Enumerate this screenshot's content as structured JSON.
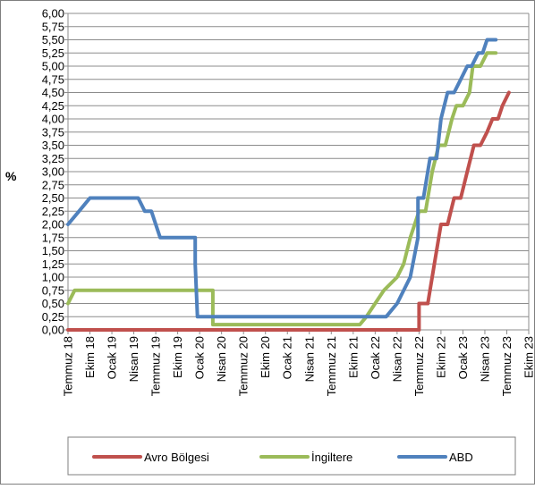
{
  "chart_data": {
    "type": "line",
    "title": "",
    "xlabel": "",
    "ylabel": "%",
    "ylim": [
      0,
      6
    ],
    "yticks": [
      "0,00",
      "0,25",
      "0,50",
      "0,75",
      "1,00",
      "1,25",
      "1,50",
      "1,75",
      "2,00",
      "2,25",
      "2,50",
      "2,75",
      "3,00",
      "3,25",
      "3,50",
      "3,75",
      "4,00",
      "4,25",
      "4,50",
      "4,75",
      "5,00",
      "5,25",
      "5,50",
      "5,75",
      "6,00"
    ],
    "xticks": [
      "Temmuz 18",
      "Ekim 18",
      "Ocak 19",
      "Nisan 19",
      "Temmuz 19",
      "Ekim 19",
      "Ocak 20",
      "Nisan 20",
      "Temmuz 20",
      "Ekim 20",
      "Ocak 21",
      "Nisan 21",
      "Temmuz 21",
      "Ekim 21",
      "Ocak 22",
      "Nisan 22",
      "Temmuz 22",
      "Ekim 22",
      "Ocak 23",
      "Nisan 23",
      "Temmuz 23",
      "Ekim 23"
    ],
    "grid": true,
    "legend_position": "bottom",
    "series": [
      {
        "name": "Avro Bölgesi",
        "color": "#C0504D",
        "points": [
          [
            0,
            0
          ],
          [
            16,
            0
          ],
          [
            16,
            0.5
          ],
          [
            16.4,
            0.5
          ],
          [
            16.7,
            1.25
          ],
          [
            17,
            2.0
          ],
          [
            17.3,
            2.0
          ],
          [
            17.6,
            2.5
          ],
          [
            17.9,
            2.5
          ],
          [
            18.2,
            3.0
          ],
          [
            18.5,
            3.5
          ],
          [
            18.8,
            3.5
          ],
          [
            19.1,
            3.75
          ],
          [
            19.35,
            4.0
          ],
          [
            19.6,
            4.0
          ],
          [
            19.8,
            4.25
          ],
          [
            20.1,
            4.5
          ]
        ]
      },
      {
        "name": "İngiltere",
        "color": "#9BBB59",
        "points": [
          [
            0,
            0.5
          ],
          [
            0.3,
            0.75
          ],
          [
            6.6,
            0.75
          ],
          [
            6.6,
            0.1
          ],
          [
            13.3,
            0.1
          ],
          [
            13.6,
            0.25
          ],
          [
            14,
            0.5
          ],
          [
            14.4,
            0.75
          ],
          [
            15,
            1.0
          ],
          [
            15.3,
            1.25
          ],
          [
            15.6,
            1.75
          ],
          [
            16,
            2.25
          ],
          [
            16.3,
            2.25
          ],
          [
            16.6,
            3.0
          ],
          [
            16.9,
            3.5
          ],
          [
            17.2,
            3.5
          ],
          [
            17.5,
            4.0
          ],
          [
            17.7,
            4.25
          ],
          [
            18.0,
            4.25
          ],
          [
            18.3,
            4.5
          ],
          [
            18.45,
            5.0
          ],
          [
            18.8,
            5.0
          ],
          [
            19.1,
            5.25
          ],
          [
            19.5,
            5.25
          ]
        ]
      },
      {
        "name": "ABD",
        "color": "#4F81BD",
        "points": [
          [
            0,
            2.0
          ],
          [
            0.5,
            2.25
          ],
          [
            1,
            2.5
          ],
          [
            3.2,
            2.5
          ],
          [
            3.5,
            2.25
          ],
          [
            3.8,
            2.25
          ],
          [
            4.2,
            1.75
          ],
          [
            5.8,
            1.75
          ],
          [
            5.8,
            1.25
          ],
          [
            5.9,
            0.25
          ],
          [
            14.5,
            0.25
          ],
          [
            15.0,
            0.5
          ],
          [
            15.6,
            1.0
          ],
          [
            15.95,
            1.75
          ],
          [
            15.95,
            2.5
          ],
          [
            16.2,
            2.5
          ],
          [
            16.5,
            3.25
          ],
          [
            16.8,
            3.25
          ],
          [
            17.0,
            4.0
          ],
          [
            17.3,
            4.5
          ],
          [
            17.6,
            4.5
          ],
          [
            17.9,
            4.75
          ],
          [
            18.2,
            5.0
          ],
          [
            18.4,
            5.0
          ],
          [
            18.7,
            5.25
          ],
          [
            18.9,
            5.25
          ],
          [
            19.1,
            5.5
          ],
          [
            19.5,
            5.5
          ]
        ]
      }
    ]
  }
}
